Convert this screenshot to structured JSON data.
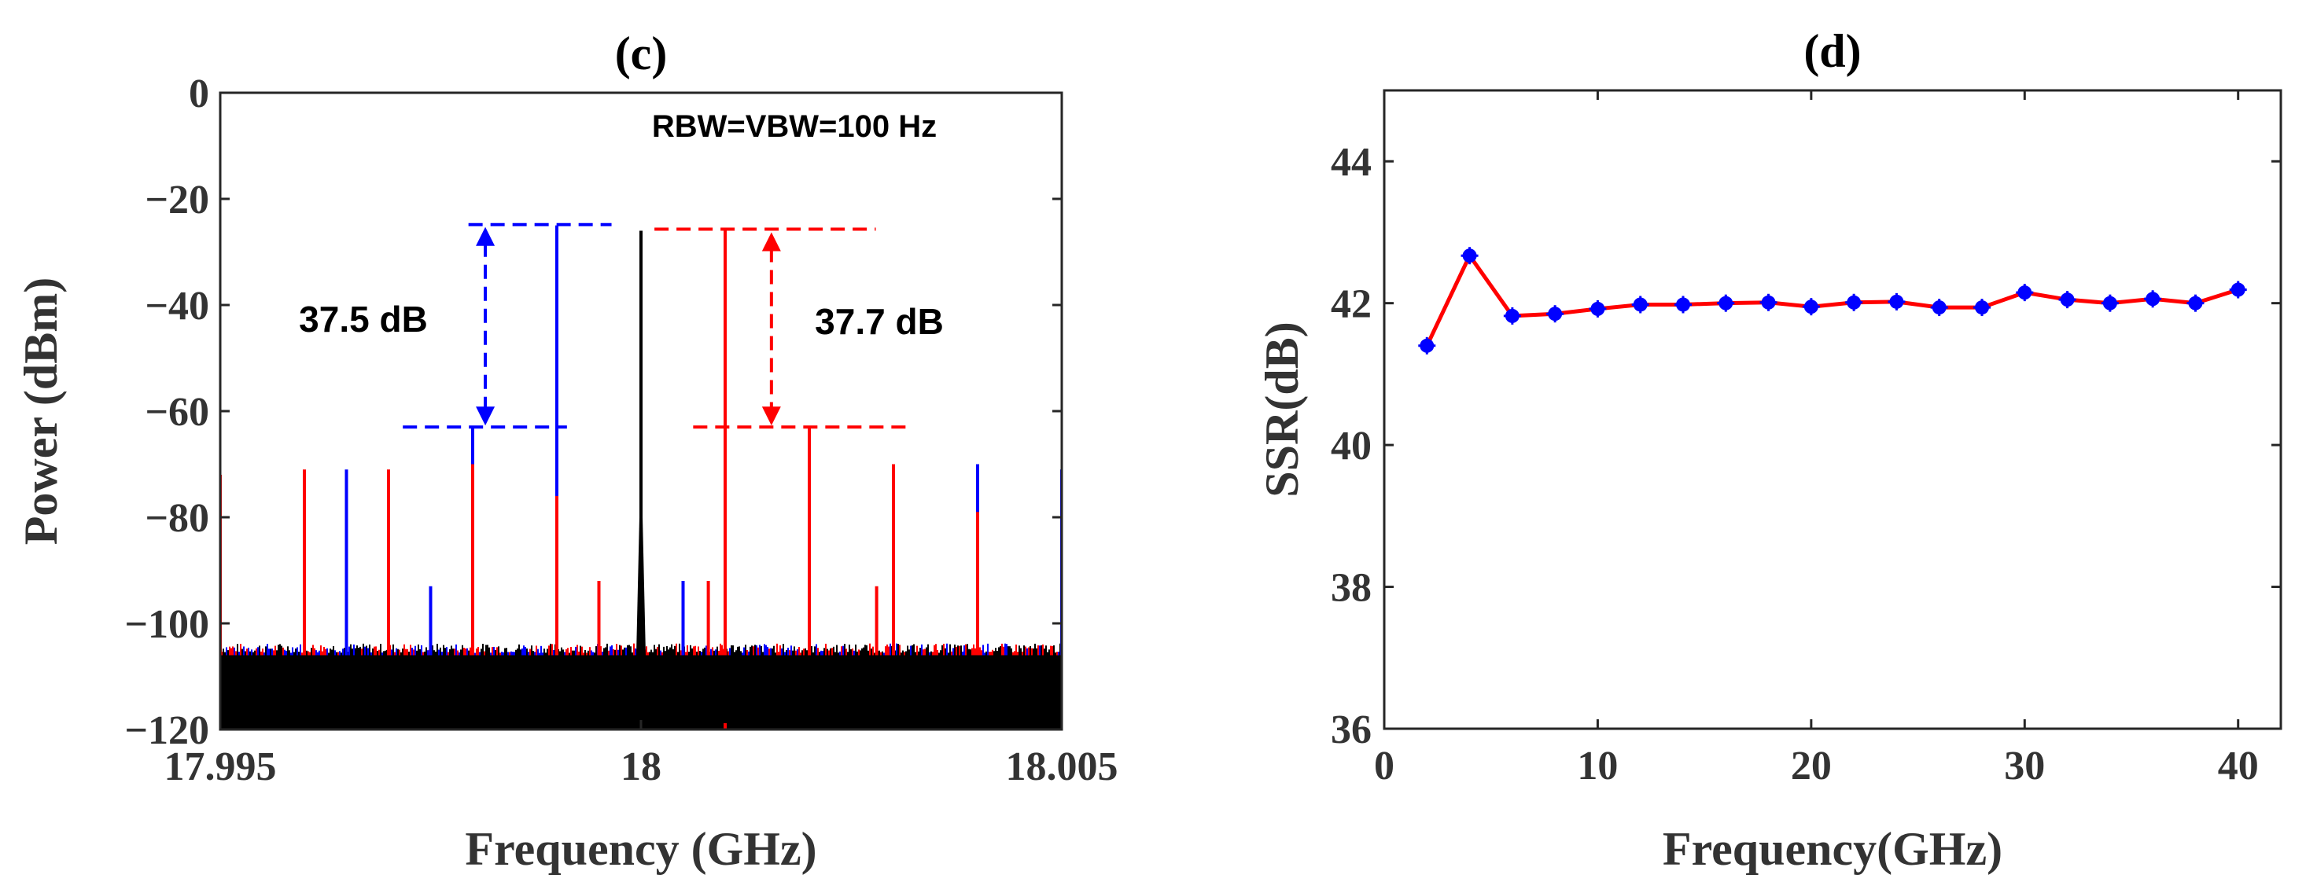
{
  "chart_data": [
    {
      "type": "line",
      "panel": "c",
      "title": "(c)",
      "xlabel": "Frequency (GHz)",
      "ylabel": "Power (dBm)",
      "xlim": [
        17.995,
        18.005
      ],
      "ylim": [
        -120,
        0
      ],
      "x_ticks": [
        17.995,
        18,
        18.005
      ],
      "x_tick_labels": [
        "17.995",
        "18",
        "18.005"
      ],
      "y_ticks": [
        0,
        -20,
        -40,
        -60,
        -80,
        -100,
        -120
      ],
      "y_tick_labels": [
        "0",
        "−20",
        "−40",
        "−60",
        "−80",
        "−100",
        "−120"
      ],
      "noise_floor_dbm": -106,
      "annotation_rbw": "RBW=VBW=100 Hz",
      "annotation_left_ssr": "37.5 dB",
      "annotation_right_ssr": "37.7 dB",
      "series": [
        {
          "name": "black",
          "color": "#000000",
          "peaks": [
            {
              "f": 18.0,
              "p": -26
            },
            {
              "f": 17.999,
              "p": -95
            },
            {
              "f": 17.998,
              "p": -95
            },
            {
              "f": 18.001,
              "p": -95
            },
            {
              "f": 18.002,
              "p": -95
            }
          ]
        },
        {
          "name": "blue",
          "color": "#0000ff",
          "peaks": [
            {
              "f": 17.999,
              "p": -25
            },
            {
              "f": 17.998,
              "p": -63
            },
            {
              "f": 18.0005,
              "p": -92
            },
            {
              "f": 18.001,
              "p": -92
            },
            {
              "f": 17.9975,
              "p": -93
            },
            {
              "f": 17.9965,
              "p": -71
            },
            {
              "f": 18.004,
              "p": -70
            },
            {
              "f": 18.005,
              "p": -71
            }
          ]
        },
        {
          "name": "red",
          "color": "#ff0000",
          "peaks": [
            {
              "f": 18.001,
              "p": -26
            },
            {
              "f": 18.002,
              "p": -63
            },
            {
              "f": 18.003,
              "p": -70
            },
            {
              "f": 17.997,
              "p": -71
            },
            {
              "f": 17.996,
              "p": -71
            },
            {
              "f": 17.995,
              "p": -72
            },
            {
              "f": 18.004,
              "p": -79
            },
            {
              "f": 17.998,
              "p": -70
            },
            {
              "f": 17.999,
              "p": -76
            },
            {
              "f": 17.9995,
              "p": -92
            },
            {
              "f": 18.0008,
              "p": -92
            },
            {
              "f": 18.0028,
              "p": -93
            },
            {
              "f": 18.001,
              "p": -120
            }
          ]
        }
      ]
    },
    {
      "type": "line",
      "panel": "d",
      "title": "(d)",
      "xlabel": "Frequency(GHz)",
      "ylabel": "SSR(dB)",
      "xlim": [
        0,
        42
      ],
      "ylim": [
        36,
        45
      ],
      "x_ticks": [
        0,
        10,
        20,
        30,
        40
      ],
      "x_tick_labels": [
        "0",
        "10",
        "20",
        "30",
        "40"
      ],
      "y_ticks": [
        36,
        38,
        40,
        42,
        44
      ],
      "y_tick_labels": [
        "36",
        "38",
        "40",
        "42",
        "44"
      ],
      "line_color": "#ff0000",
      "marker_color": "#0000ff",
      "x": [
        2,
        4,
        6,
        8,
        10,
        12,
        14,
        16,
        18,
        20,
        22,
        24,
        26,
        28,
        30,
        32,
        34,
        36,
        38,
        40
      ],
      "y": [
        41.4,
        42.67,
        41.82,
        41.85,
        41.92,
        41.98,
        41.98,
        42.0,
        42.01,
        41.95,
        42.01,
        42.02,
        41.94,
        41.94,
        42.15,
        42.05,
        42.0,
        42.06,
        42.0,
        42.19
      ]
    }
  ]
}
